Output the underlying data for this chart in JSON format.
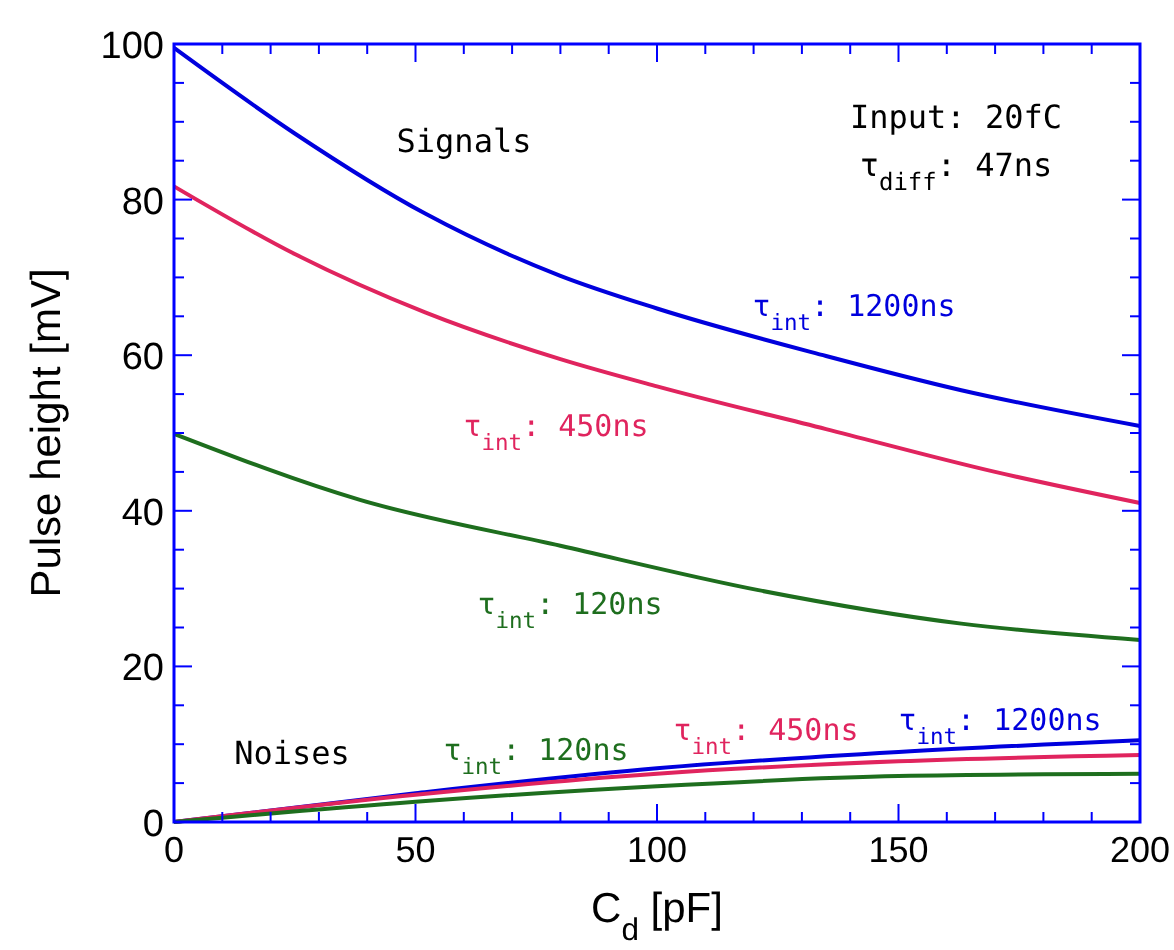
{
  "chart_data": {
    "type": "line",
    "xlabel": "C$_{d}$ [pF]",
    "ylabel": "Pulse height [mV]",
    "xlim": [
      0,
      200
    ],
    "ylim": [
      0,
      100
    ],
    "xticks": [
      0,
      {
        "value": 10,
        "label": null
      },
      {
        "value": 20,
        "label": null
      },
      {
        "value": 30,
        "label": null
      },
      {
        "value": 40,
        "label": null
      },
      50,
      {
        "value": 60,
        "label": null
      },
      {
        "value": 70,
        "label": null
      },
      {
        "value": 80,
        "label": null
      },
      {
        "value": 90,
        "label": null
      },
      100,
      {
        "value": 110,
        "label": null
      },
      {
        "value": 120,
        "label": null
      },
      {
        "value": 130,
        "label": null
      },
      {
        "value": 140,
        "label": null
      },
      150,
      {
        "value": 160,
        "label": null
      },
      {
        "value": 170,
        "label": null
      },
      {
        "value": 180,
        "label": null
      },
      {
        "value": 190,
        "label": null
      },
      200
    ],
    "yticks": [
      0,
      {
        "value": 5,
        "label": null
      },
      {
        "value": 10,
        "label": null
      },
      {
        "value": 15,
        "label": null
      },
      20,
      {
        "value": 25,
        "label": null
      },
      {
        "value": 30,
        "label": null
      },
      {
        "value": 35,
        "label": null
      },
      40,
      {
        "value": 45,
        "label": null
      },
      {
        "value": 50,
        "label": null
      },
      {
        "value": 55,
        "label": null
      },
      60,
      {
        "value": 65,
        "label": null
      },
      {
        "value": 70,
        "label": null
      },
      {
        "value": 75,
        "label": null
      },
      80,
      {
        "value": 85,
        "label": null
      },
      {
        "value": 90,
        "label": null
      },
      {
        "value": 95,
        "label": null
      },
      100
    ],
    "grid": false,
    "marker": "none",
    "line_style": "solid",
    "x": [
      0,
      25,
      52,
      80,
      100,
      135,
      163,
      200
    ],
    "series": [
      {
        "name": "τ$_{int}$: 1200ns",
        "color": "#0000dd",
        "values": [
          99.5,
          88.5,
          78.2,
          70.2,
          66,
          59.9,
          55.5,
          50.9
        ]
      },
      {
        "name": "τ$_{int}$: 450ns",
        "color": "#e0245e",
        "x": [
          0,
          25,
          52,
          80,
          100,
          135,
          170,
          200
        ],
        "values": [
          81.7,
          73,
          65.5,
          59.5,
          56,
          50.5,
          45,
          41
        ]
      },
      {
        "name": "τ$_{int}$: 120ns",
        "color": "#1e6e1e",
        "x": [
          0,
          38.5,
          80,
          121,
          163,
          200
        ],
        "values": [
          49.9,
          41.4,
          35.5,
          29.8,
          25.5,
          23.4
        ]
      },
      {
        "name": "τ$_{int}$: 1200ns",
        "color": "#0000dd",
        "x": [
          0,
          50,
          100,
          150,
          200
        ],
        "values": [
          0,
          3.7,
          6.9,
          9,
          10.5
        ]
      },
      {
        "name": "τ$_{int}$: 450ns",
        "color": "#e0245e",
        "x": [
          0,
          50,
          100,
          150,
          200
        ],
        "values": [
          0,
          3.5,
          6.2,
          7.8,
          8.6
        ]
      },
      {
        "name": "τ$_{int}$: 120ns",
        "color": "#1e6e1e",
        "x": [
          0,
          50,
          100,
          150,
          200
        ],
        "values": [
          0,
          2.6,
          4.6,
          5.9,
          6.2
        ]
      }
    ],
    "annotations": [
      "Signals",
      "Input: 20fC",
      "τ$_{diff}$: 47ns",
      "Noises"
    ]
  }
}
